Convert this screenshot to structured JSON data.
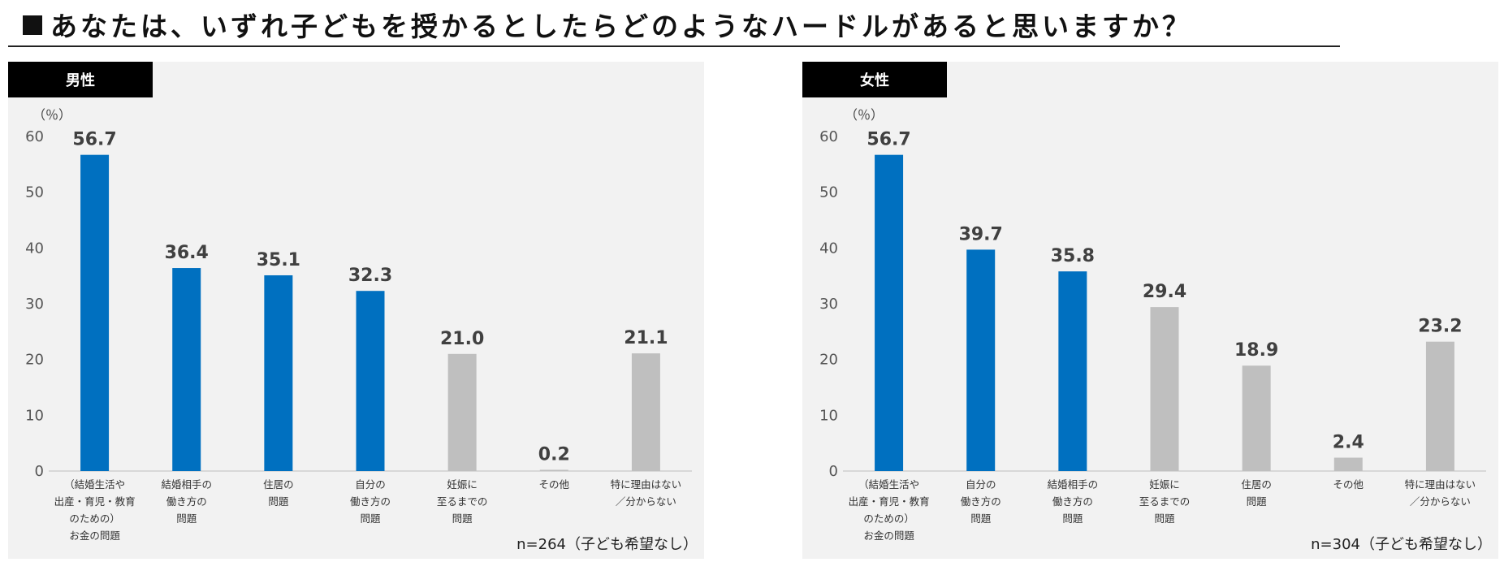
{
  "title": "あなたは、いずれ子どもを授かるとしたらどのようなハードルがあると思いますか？",
  "colors": {
    "highlight": "#0070c0",
    "other": "#bfbfbf",
    "panel_bg": "#f2f2f2"
  },
  "chart_data": [
    {
      "type": "bar",
      "panel_label": "男性",
      "unit_label": "（％）",
      "sample_note": "n=264（子ども希望なし）",
      "ylim": [
        0,
        60
      ],
      "yticks": [
        0,
        10,
        20,
        30,
        40,
        50,
        60
      ],
      "categories": [
        [
          "（結婚生活や",
          "出産・育児・教育",
          "のための）",
          "お金の問題"
        ],
        [
          "結婚相手の",
          "働き方の",
          "問題"
        ],
        [
          "住居の",
          "問題"
        ],
        [
          "自分の",
          "働き方の",
          "問題"
        ],
        [
          "妊娠に",
          "至るまでの",
          "問題"
        ],
        [
          "その他"
        ],
        [
          "特に理由はない",
          "／分からない"
        ]
      ],
      "values": [
        56.7,
        36.4,
        35.1,
        32.3,
        21.0,
        0.2,
        21.1
      ],
      "value_labels": [
        "56.7",
        "36.4",
        "35.1",
        "32.3",
        "21.0",
        "0.2",
        "21.1"
      ],
      "highlighted": [
        true,
        true,
        true,
        true,
        false,
        false,
        false
      ]
    },
    {
      "type": "bar",
      "panel_label": "女性",
      "unit_label": "（％）",
      "sample_note": "n=304（子ども希望なし）",
      "ylim": [
        0,
        60
      ],
      "yticks": [
        0,
        10,
        20,
        30,
        40,
        50,
        60
      ],
      "categories": [
        [
          "（結婚生活や",
          "出産・育児・教育",
          "のための）",
          "お金の問題"
        ],
        [
          "自分の",
          "働き方の",
          "問題"
        ],
        [
          "結婚相手の",
          "働き方の",
          "問題"
        ],
        [
          "妊娠に",
          "至るまでの",
          "問題"
        ],
        [
          "住居の",
          "問題"
        ],
        [
          "その他"
        ],
        [
          "特に理由はない",
          "／分からない"
        ]
      ],
      "values": [
        56.7,
        39.7,
        35.8,
        29.4,
        18.9,
        2.4,
        23.2
      ],
      "value_labels": [
        "56.7",
        "39.7",
        "35.8",
        "29.4",
        "18.9",
        "2.4",
        "23.2"
      ],
      "highlighted": [
        true,
        true,
        true,
        false,
        false,
        false,
        false
      ]
    }
  ]
}
